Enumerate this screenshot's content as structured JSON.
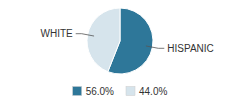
{
  "chart_data": {
    "type": "pie",
    "categories": [
      "HISPANIC",
      "WHITE"
    ],
    "values": [
      56.0,
      44.0
    ],
    "value_labels": [
      "56.0%",
      "44.0%"
    ],
    "colors": [
      "#2e7799",
      "#d6e4ec"
    ],
    "legend": "bottom"
  }
}
